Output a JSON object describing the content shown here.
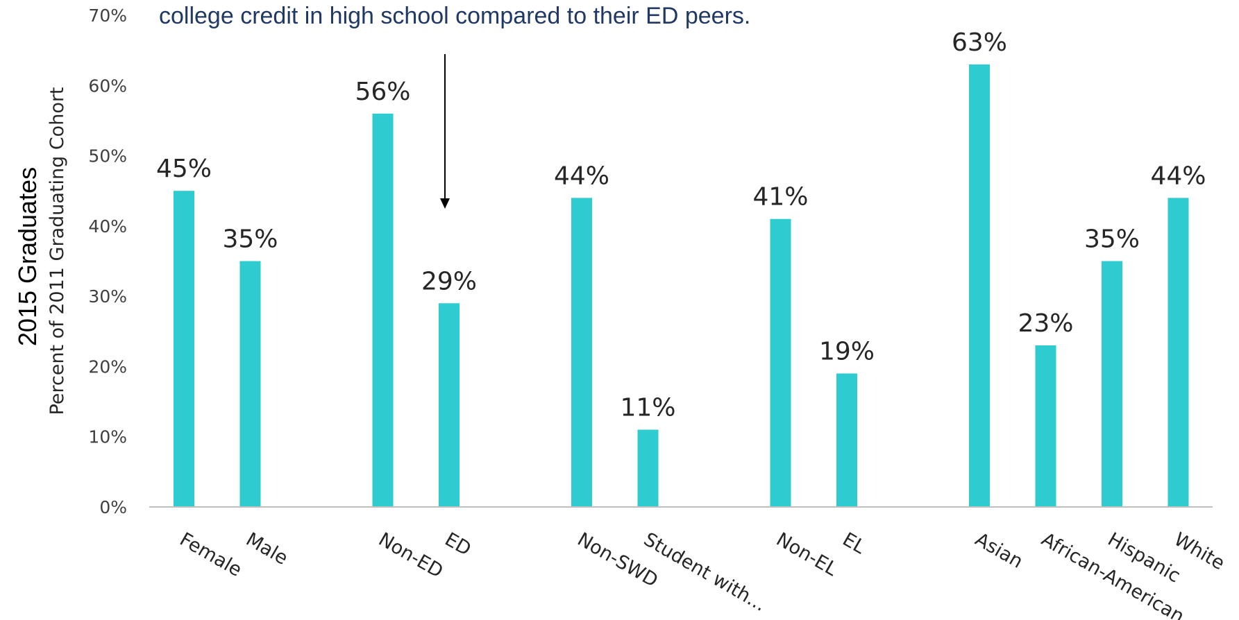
{
  "chart_data": {
    "type": "bar",
    "annotation": "college credit in high school compared to their ED peers.",
    "ylabel_main": "2015 Graduates",
    "ylabel_sub": "Percent of 2011 Graduating Cohort",
    "ylim": [
      0,
      70
    ],
    "yticks": [
      "0%",
      "10%",
      "20%",
      "30%",
      "40%",
      "50%",
      "60%",
      "70%"
    ],
    "grid": false,
    "bar_color": "#2ecbd1",
    "categories": [
      "Female",
      "Male",
      "Non-ED",
      "ED",
      "Non-SWD",
      "Student with...",
      "Non-EL",
      "EL",
      "Asian",
      "African-American",
      "Hispanic",
      "White"
    ],
    "values": [
      45,
      35,
      56,
      29,
      44,
      11,
      41,
      19,
      63,
      23,
      35,
      44
    ],
    "data_labels": [
      "45%",
      "35%",
      "56%",
      "29%",
      "44%",
      "11%",
      "41%",
      "19%",
      "63%",
      "23%",
      "35%",
      "44%"
    ]
  }
}
